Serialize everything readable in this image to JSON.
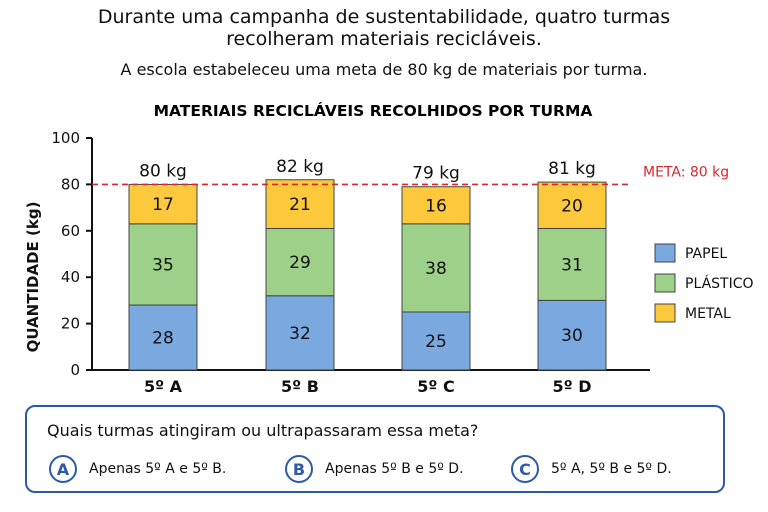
{
  "intro": {
    "line1": "Durante uma campanha de sustentabilidade, quatro turmas",
    "line2": "recolheram materiais recicláveis.",
    "line3": "A escola estabeleceu uma meta de 80 kg de materiais por turma."
  },
  "chart_data": {
    "type": "bar",
    "stacked": true,
    "title": "MATERIAIS RECICLÁVEIS RECOLHIDOS POR TURMA",
    "xlabel": "",
    "ylabel": "QUANTIDADE (kg)",
    "ylim": [
      0,
      100
    ],
    "yticks": [
      0,
      20,
      40,
      60,
      80,
      100
    ],
    "categories": [
      "5º A",
      "5º B",
      "5º C",
      "5º D"
    ],
    "series": [
      {
        "name": "PAPEL",
        "values": [
          28,
          32,
          25,
          30
        ],
        "color": "#7aa9e0"
      },
      {
        "name": "PLÁSTICO",
        "values": [
          35,
          29,
          38,
          31
        ],
        "color": "#9dd18a"
      },
      {
        "name": "METAL",
        "values": [
          17,
          21,
          16,
          20
        ],
        "color": "#fcc93d"
      }
    ],
    "totals": [
      "80 kg",
      "82 kg",
      "79 kg",
      "81 kg"
    ],
    "goal": {
      "value": 80,
      "label": "META: 80 kg",
      "color": "#d8282f"
    },
    "legend_position": "right",
    "grid": false
  },
  "question": {
    "text": "Quais turmas atingiram ou ultrapassaram essa meta?",
    "options": [
      {
        "letter": "A",
        "text": "Apenas 5º A e 5º B."
      },
      {
        "letter": "B",
        "text": "Apenas 5º B e 5º D."
      },
      {
        "letter": "C",
        "text": "5º A, 5º B e 5º D."
      }
    ]
  },
  "colors": {
    "accent": "#2c5aa8"
  }
}
